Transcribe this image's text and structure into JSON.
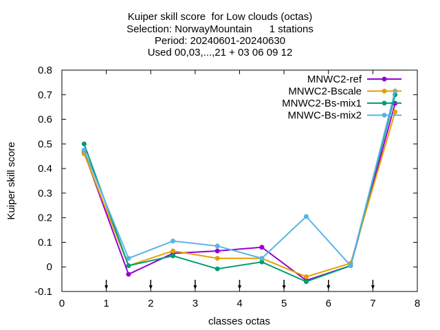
{
  "chart_data": {
    "type": "line",
    "title": [
      "Kuiper skill score  for Low clouds (octas)",
      "Selection: NorwayMountain      1 stations",
      "Period: 20240601-20240630",
      "Used 00,03,...,21 + 03 06 09 12"
    ],
    "xlabel": "classes octas",
    "ylabel": "Kuiper skill score",
    "xlim": [
      0,
      8
    ],
    "ylim": [
      -0.1,
      0.8
    ],
    "xticks": [
      0,
      1,
      2,
      3,
      4,
      5,
      6,
      7,
      8
    ],
    "yticks": [
      -0.1,
      0,
      0.1,
      0.2,
      0.3,
      0.4,
      0.5,
      0.6,
      0.7,
      0.8
    ],
    "ytick_labels": [
      "-0.1",
      "0",
      "0.1",
      "0.2",
      "0.3",
      "0.4",
      "0.5",
      "0.6",
      "0.7",
      "0.8"
    ],
    "bottom_arrow_markers_x": [
      1,
      2,
      3,
      4,
      5,
      6,
      7
    ],
    "grid": false,
    "legend_position": "top-right",
    "x": [
      0.5,
      1.5,
      2.5,
      3.5,
      4.5,
      5.5,
      6.5,
      7.5
    ],
    "series": [
      {
        "name": "MNWC2-ref",
        "color": "#9400d3",
        "values": [
          0.465,
          -0.03,
          0.055,
          0.065,
          0.08,
          -0.055,
          0.005,
          0.665
        ]
      },
      {
        "name": "MNWC2-Bscale",
        "color": "#e69f00",
        "values": [
          0.46,
          0.005,
          0.065,
          0.035,
          0.035,
          -0.04,
          0.015,
          0.63
        ]
      },
      {
        "name": "MNWC2-Bs-mix1",
        "color": "#009e73",
        "values": [
          0.5,
          0.005,
          0.045,
          -0.008,
          0.02,
          -0.06,
          0.005,
          0.7
        ]
      },
      {
        "name": "MNWC-Bs-mix2",
        "color": "#56b4e9",
        "values": [
          0.475,
          0.035,
          0.105,
          0.085,
          0.035,
          0.205,
          0.005,
          0.715
        ]
      }
    ]
  }
}
